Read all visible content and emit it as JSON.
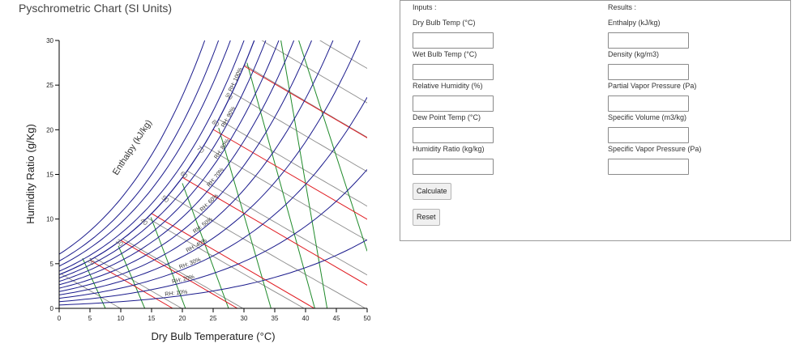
{
  "chart_data": {
    "type": "line",
    "title": "Pyschrometric Chart (SI Units)",
    "xlabel": "Dry Bulb Temperature (°C)",
    "ylabel": "Humidity Ratio (g/Kg)",
    "xlim": [
      0,
      50
    ],
    "ylim": [
      0,
      30
    ],
    "x_ticks": [
      0,
      5,
      10,
      15,
      20,
      25,
      30,
      35,
      40,
      45,
      50
    ],
    "y_ticks": [
      0,
      5,
      10,
      15,
      20,
      25,
      30
    ],
    "enthalpy_axis_label": "Enthalpy (kJ/kg)",
    "enthalpy_ticks": [
      20,
      30,
      40,
      50,
      60,
      70,
      80,
      90
    ],
    "rh_percent": [
      10,
      20,
      30,
      40,
      50,
      60,
      70,
      80,
      90,
      100
    ],
    "rh_labels": [
      "RH: 10%",
      "RH: 20%",
      "RH: 30%",
      "RH: 40%",
      "RH: 50%",
      "RH: 60%",
      "RH: 70%",
      "RH: 80%",
      "RH: 90%",
      "RH: 100%"
    ],
    "saturation_curve": [
      {
        "x": 0,
        "y": 3.8
      },
      {
        "x": 5,
        "y": 5.4
      },
      {
        "x": 10,
        "y": 7.6
      },
      {
        "x": 15,
        "y": 10.6
      },
      {
        "x": 20,
        "y": 14.7
      },
      {
        "x": 25,
        "y": 20.0
      },
      {
        "x": 30,
        "y": 27.3
      },
      {
        "x": 31.5,
        "y": 30
      }
    ],
    "wet_bulb_temps": [
      5,
      10,
      15,
      20,
      25,
      30
    ],
    "specific_volume_lines": [
      {
        "x": [
          3.8,
          7.5
        ],
        "y": [
          5.6,
          0
        ]
      },
      {
        "x": [
          9.6,
          13.9
        ],
        "y": [
          7.0,
          0
        ]
      },
      {
        "x": [
          14.9,
          20.5
        ],
        "y": [
          10.2,
          0
        ]
      },
      {
        "x": [
          20.0,
          27.5
        ],
        "y": [
          14.0,
          0
        ]
      },
      {
        "x": [
          25.9,
          34.4
        ],
        "y": [
          20.2,
          0
        ]
      },
      {
        "x": [
          30.5,
          41.5
        ],
        "y": [
          27.5,
          0
        ]
      },
      {
        "x": [
          36.0,
          43.5
        ],
        "y": [
          30,
          0
        ]
      },
      {
        "x": [
          38.9,
          50
        ],
        "y": [
          30,
          6.4
        ]
      }
    ],
    "series_colors": {
      "rh": "#1a1a8c",
      "enthalpy": "#8c8c8c",
      "wet_bulb": "#e0191f",
      "specific_volume": "#1f8a2a",
      "axis": "#000000"
    },
    "grid": false
  },
  "inputs": {
    "title": "Inputs :",
    "fields": [
      {
        "label": "Dry Bulb Temp (°C)",
        "value": ""
      },
      {
        "label": "Wet Bulb Temp (°C)",
        "value": ""
      },
      {
        "label": "Relative Humidity (%)",
        "value": ""
      },
      {
        "label": "Dew Point Temp (°C)",
        "value": ""
      },
      {
        "label": "Humidity Ratio (kg/kg)",
        "value": ""
      }
    ],
    "calculate_label": "Calculate",
    "reset_label": "Reset"
  },
  "results": {
    "title": "Results :",
    "fields": [
      {
        "label": "Enthalpy (kJ/kg)",
        "value": ""
      },
      {
        "label": "Density (kg/m3)",
        "value": ""
      },
      {
        "label": "Partial Vapor Pressure (Pa)",
        "value": ""
      },
      {
        "label": "Specific Volume (m3/kg)",
        "value": ""
      },
      {
        "label": "Specific Vapor Pressure (Pa)",
        "value": ""
      }
    ]
  }
}
